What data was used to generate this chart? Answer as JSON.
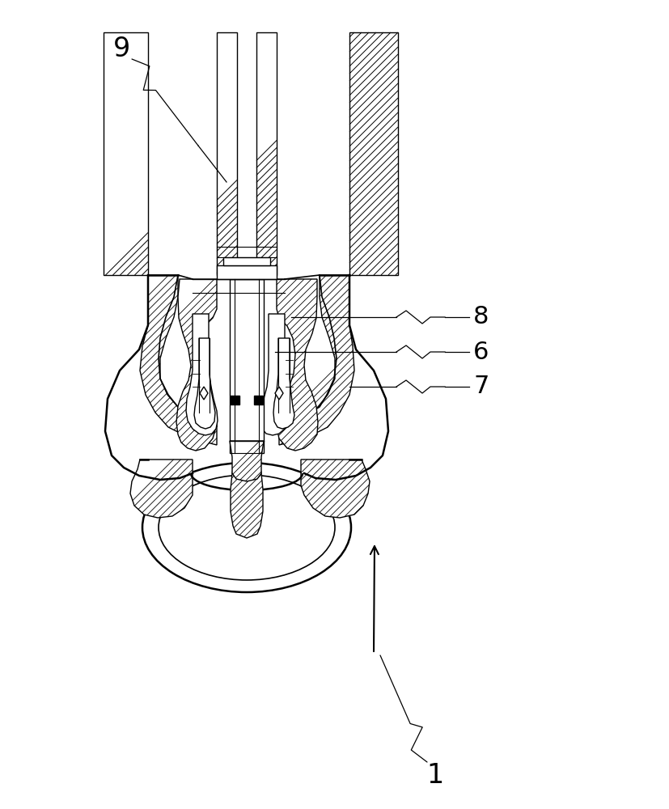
{
  "bg_color": "#ffffff",
  "line_color": "#000000",
  "label_1": "1",
  "label_6": "6",
  "label_7": "7",
  "label_8": "8",
  "label_9": "9",
  "label_fontsize": 22,
  "figsize": [
    8.27,
    10.0
  ],
  "dpi": 100
}
